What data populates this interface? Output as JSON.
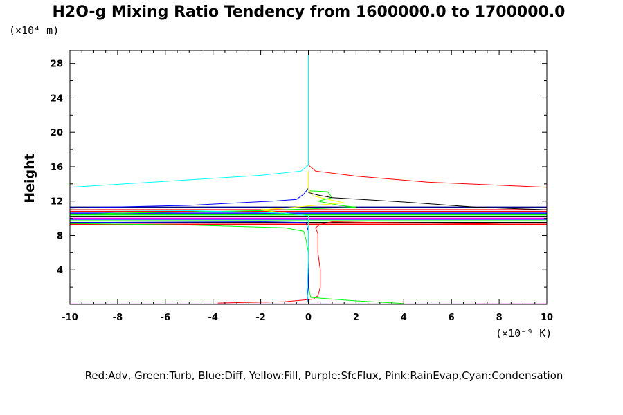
{
  "chart_data": {
    "type": "line",
    "title": "H2O-g Mixing Ratio Tendency from 1600000.0 to 1700000.0",
    "ylabel": "Height",
    "y_scale_label": "(×10⁴ m)",
    "x_scale_label": "(×10⁻⁹ K)",
    "xlim": [
      -10,
      10
    ],
    "ylim": [
      0,
      29.5
    ],
    "xticks": [
      -10,
      -8,
      -6,
      -4,
      -2,
      0,
      2,
      4,
      6,
      8,
      10
    ],
    "yticks": [
      4,
      8,
      12,
      16,
      20,
      24,
      28
    ],
    "legend_text": "Red:Adv,  Green:Turb,  Blue:Diff,  Yellow:Fill,  Purple:SfcFlux,  Pink:RainEvap,Cyan:Condensation",
    "grid": false,
    "series": [
      {
        "name": "Adv",
        "color": "#ff0000",
        "points": [
          [
            0,
            16.2
          ],
          [
            0.3,
            15.5
          ],
          [
            2,
            14.9
          ],
          [
            5,
            14.2
          ],
          [
            10,
            13.6
          ],
          [
            10,
            9.2
          ],
          [
            7,
            9.4
          ],
          [
            3,
            9.5
          ],
          [
            1,
            9.6
          ],
          [
            0.5,
            9.3
          ],
          [
            0.3,
            8.9
          ],
          [
            0.4,
            8.2
          ],
          [
            0.4,
            6.0
          ],
          [
            0.5,
            4.0
          ],
          [
            0.5,
            2.0
          ],
          [
            0.4,
            1.0
          ],
          [
            0.2,
            0.6
          ],
          [
            -1,
            0.3
          ],
          [
            -3,
            0.2
          ],
          [
            -3.8,
            0.15
          ]
        ]
      },
      {
        "name": "Turb",
        "color": "#00ff00",
        "points": [
          [
            0,
            13.2
          ],
          [
            0.8,
            13.1
          ],
          [
            1.0,
            12.4
          ],
          [
            0.4,
            12.0
          ],
          [
            1.3,
            11.5
          ],
          [
            2.0,
            11.3
          ],
          [
            -2,
            10.9
          ],
          [
            -8,
            10.6
          ],
          [
            -10,
            10.4
          ],
          [
            -10,
            9.4
          ],
          [
            -5,
            9.2
          ],
          [
            -1,
            8.9
          ],
          [
            -0.2,
            8.5
          ],
          [
            -0.1,
            7.5
          ],
          [
            0,
            6
          ],
          [
            0,
            2
          ],
          [
            0.1,
            0.8
          ],
          [
            2,
            0.4
          ],
          [
            4,
            0.1
          ]
        ]
      },
      {
        "name": "Diff",
        "color": "#0000ff",
        "points": [
          [
            0,
            13.5
          ],
          [
            -0.2,
            12.8
          ],
          [
            -0.5,
            12.2
          ],
          [
            -1.5,
            12.0
          ],
          [
            -5,
            11.5
          ],
          [
            -10,
            11.2
          ],
          [
            -10,
            9.5
          ],
          [
            -2,
            9.6
          ],
          [
            -0.1,
            9.5
          ],
          [
            0,
            8.5
          ],
          [
            0,
            2.0
          ],
          [
            -0.05,
            0.7
          ],
          [
            0,
            0.2
          ]
        ]
      },
      {
        "name": "Fill",
        "color": "#ffff00",
        "points": [
          [
            0,
            15.5
          ],
          [
            0,
            13.4
          ],
          [
            0.2,
            12.6
          ],
          [
            1.5,
            11.8
          ],
          [
            -1,
            11.2
          ],
          [
            -2,
            11.0
          ],
          [
            -1,
            10.6
          ],
          [
            0,
            10.3
          ]
        ]
      },
      {
        "name": "SfcFlux",
        "color": "#a000a0",
        "points": [
          [
            -10,
            0.05
          ],
          [
            0,
            0.05
          ],
          [
            10,
            0.05
          ]
        ]
      },
      {
        "name": "RainEvap",
        "color": "#ff00ff",
        "points": [
          [
            7,
            0.05
          ],
          [
            10,
            0.05
          ]
        ]
      },
      {
        "name": "Condensation",
        "color": "#00ffff",
        "points": [
          [
            0,
            29.5
          ],
          [
            0,
            16.2
          ],
          [
            -0.3,
            15.5
          ],
          [
            -2,
            15.0
          ],
          [
            -6,
            14.3
          ],
          [
            -10,
            13.6
          ],
          [
            -10,
            11.0
          ],
          [
            -5,
            10.9
          ],
          [
            -1,
            10.6
          ],
          [
            0,
            10.3
          ],
          [
            0,
            9.6
          ],
          [
            0,
            5
          ],
          [
            -0.05,
            1.5
          ],
          [
            0,
            0.1
          ]
        ]
      },
      {
        "name": "",
        "color": "#000000",
        "points": [
          [
            0,
            13.0
          ],
          [
            0.4,
            12.7
          ],
          [
            1,
            12.4
          ],
          [
            4,
            11.9
          ],
          [
            7,
            11.3
          ],
          [
            10,
            11.0
          ]
        ]
      }
    ],
    "bands": [
      {
        "y": 11.3,
        "color": "#000080"
      },
      {
        "y": 11.0,
        "color": "#ff0000"
      },
      {
        "y": 10.8,
        "color": "#ff0000"
      },
      {
        "y": 10.6,
        "color": "#0000ff"
      },
      {
        "y": 10.4,
        "color": "#00ff00"
      },
      {
        "y": 10.2,
        "color": "#000000"
      },
      {
        "y": 10.0,
        "color": "#ff00ff"
      },
      {
        "y": 9.9,
        "color": "#0000ff"
      },
      {
        "y": 9.7,
        "color": "#00ff00"
      },
      {
        "y": 9.5,
        "color": "#000000"
      },
      {
        "y": 9.3,
        "color": "#ff0000"
      }
    ]
  }
}
